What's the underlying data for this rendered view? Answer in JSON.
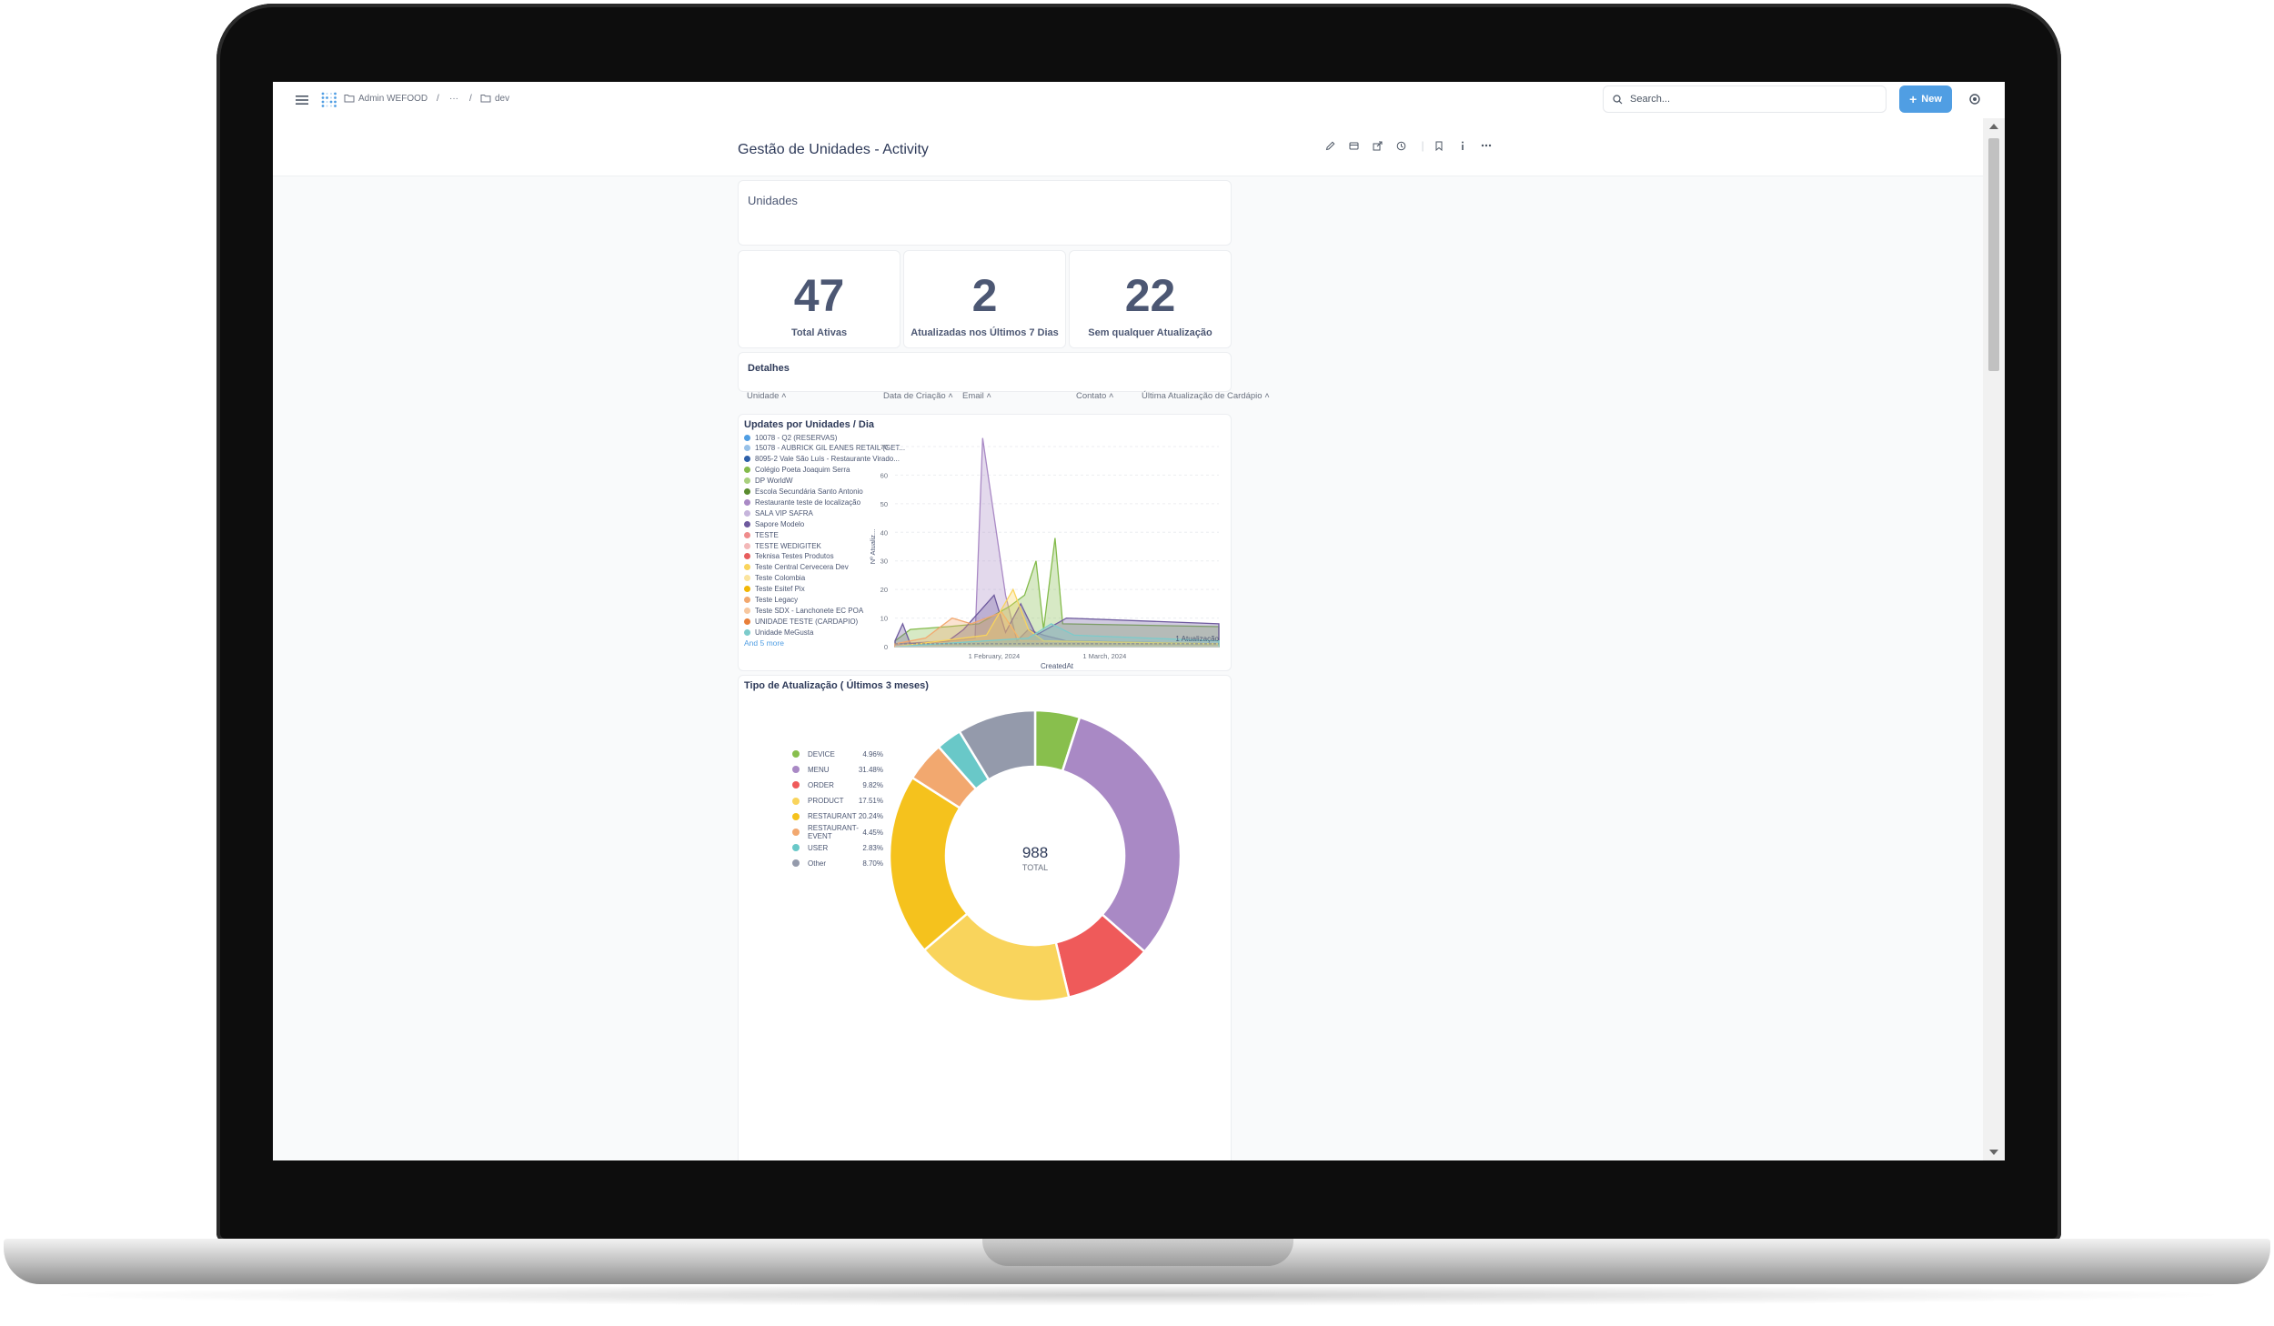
{
  "nav": {
    "breadcrumb": [
      "Admin WEFOOD",
      "/",
      "···",
      "/",
      "dev"
    ],
    "search_placeholder": "Search...",
    "new_label": "New"
  },
  "header": {
    "title": "Gestão de Unidades - Activity"
  },
  "unidades_card": {
    "title": "Unidades"
  },
  "kpis": [
    {
      "value": "47",
      "label": "Total Ativas"
    },
    {
      "value": "2",
      "label": "Atualizadas nos Últimos 7 Dias"
    },
    {
      "value": "22",
      "label": "Sem qualquer Atualização"
    }
  ],
  "detalhes": {
    "title": "Detalhes",
    "columns": [
      "Unidade",
      "Data de Criação",
      "Email",
      "Contato",
      "Última Atualização de Cardápio"
    ]
  },
  "area_chart": {
    "title": "Updates por Unidades / Dia",
    "legend": [
      {
        "name": "10078 - Q2 (RESERVAS)",
        "color": "#509ee3"
      },
      {
        "name": "15078 - AUBRICK GIL EANES RETAIL (GET...",
        "color": "#98c1e8"
      },
      {
        "name": "8095-2 Vale São Luís - Restaurante Virado...",
        "color": "#2d5fa8"
      },
      {
        "name": "Colégio Poeta Joaquim Serra",
        "color": "#84bb4c"
      },
      {
        "name": "DP WorldW",
        "color": "#a9d07e"
      },
      {
        "name": "Escola Secundária Santo Antonio",
        "color": "#5a8b2f"
      },
      {
        "name": "Restaurante teste de localização",
        "color": "#a989c5"
      },
      {
        "name": "SALA VIP SAFRA",
        "color": "#c6b5dc"
      },
      {
        "name": "Sapore Modelo",
        "color": "#6e5a9e"
      },
      {
        "name": "TESTE",
        "color": "#ef8c8c"
      },
      {
        "name": "TESTE WEDIGITEK",
        "color": "#f3b8b8"
      },
      {
        "name": "Teknisa Testes Produtos",
        "color": "#e75d5d"
      },
      {
        "name": "Teste Central Cervecera Dev",
        "color": "#f9d45c"
      },
      {
        "name": "Teste Colombia",
        "color": "#fbe49e"
      },
      {
        "name": "Teste Esitef Pix",
        "color": "#f2b705"
      },
      {
        "name": "Teste Legacy",
        "color": "#f2a86f"
      },
      {
        "name": "Teste SDX - Lanchonete EC POA",
        "color": "#f7c8a0"
      },
      {
        "name": "UNIDADE TESTE (CARDAPIO)",
        "color": "#e87f3a"
      },
      {
        "name": "Unidade MeGusta",
        "color": "#7ccbcb"
      }
    ],
    "and_more": "And 5 more",
    "goal_label": "1 Atualização"
  },
  "chart_data": [
    {
      "type": "area",
      "title": "Updates por Unidades / Dia",
      "xlabel": "CreatedAt",
      "ylabel": "Nº Atualiz...",
      "ylim": [
        0,
        70
      ],
      "yticks": [
        0,
        10,
        20,
        30,
        40,
        50,
        60,
        70
      ],
      "xticks": [
        "1 February, 2024",
        "1 March, 2024"
      ],
      "x_range": [
        "2024-01-06",
        "2024-03-31"
      ],
      "goal_line": 1,
      "legend_position": "left",
      "series": [
        {
          "name": "Restaurante teste de localização",
          "color": "#a989c5",
          "points": [
            [
              "2024-01-06",
              1
            ],
            [
              "2024-01-20",
              2
            ],
            [
              "2024-01-27",
              3
            ],
            [
              "2024-01-29",
              73
            ],
            [
              "2024-02-04",
              18
            ],
            [
              "2024-02-07",
              2
            ],
            [
              "2024-02-10",
              6
            ],
            [
              "2024-02-14",
              4
            ],
            [
              "2024-02-20",
              2
            ],
            [
              "2024-03-31",
              1
            ]
          ]
        },
        {
          "name": "Colégio Poeta Joaquim Serra",
          "color": "#84bb4c",
          "points": [
            [
              "2024-01-06",
              2
            ],
            [
              "2024-01-10",
              6
            ],
            [
              "2024-01-20",
              7
            ],
            [
              "2024-01-28",
              8
            ],
            [
              "2024-02-05",
              14
            ],
            [
              "2024-02-09",
              18
            ],
            [
              "2024-02-12",
              30
            ],
            [
              "2024-02-14",
              6
            ],
            [
              "2024-02-17",
              38
            ],
            [
              "2024-02-19",
              8
            ],
            [
              "2024-03-31",
              7
            ]
          ]
        },
        {
          "name": "Sapore Modelo",
          "color": "#6e5a9e",
          "points": [
            [
              "2024-01-06",
              2
            ],
            [
              "2024-01-08",
              8
            ],
            [
              "2024-01-10",
              1
            ],
            [
              "2024-01-20",
              2
            ],
            [
              "2024-01-24",
              6
            ],
            [
              "2024-02-01",
              18
            ],
            [
              "2024-02-04",
              5
            ],
            [
              "2024-02-08",
              15
            ],
            [
              "2024-02-12",
              4
            ],
            [
              "2024-02-20",
              10
            ],
            [
              "2024-03-31",
              8
            ]
          ]
        },
        {
          "name": "Teste Legacy",
          "color": "#f2a86f",
          "points": [
            [
              "2024-01-06",
              1
            ],
            [
              "2024-01-14",
              3
            ],
            [
              "2024-01-21",
              10
            ],
            [
              "2024-01-26",
              8
            ],
            [
              "2024-02-03",
              12
            ],
            [
              "2024-02-08",
              2
            ],
            [
              "2024-03-31",
              1
            ]
          ]
        },
        {
          "name": "Teste Central Cervecera Dev",
          "color": "#f9d45c",
          "points": [
            [
              "2024-01-06",
              0
            ],
            [
              "2024-01-30",
              4
            ],
            [
              "2024-02-06",
              20
            ],
            [
              "2024-02-10",
              6
            ],
            [
              "2024-02-14",
              2
            ],
            [
              "2024-03-31",
              1
            ]
          ]
        },
        {
          "name": "Unidade MeGusta",
          "color": "#7ccbcb",
          "points": [
            [
              "2024-01-06",
              0
            ],
            [
              "2024-02-10",
              3
            ],
            [
              "2024-02-16",
              8
            ],
            [
              "2024-02-22",
              4
            ],
            [
              "2024-03-31",
              2
            ]
          ]
        }
      ]
    },
    {
      "type": "pie",
      "title": "Tipo de Atualização ( Últimos 3 meses)",
      "total": 988,
      "total_label": "TOTAL",
      "legend_position": "left",
      "slices": [
        {
          "label": "DEVICE",
          "percent": 4.96,
          "pct_text": "4.96%",
          "color": "#88bf4d"
        },
        {
          "label": "MENU",
          "percent": 31.48,
          "pct_text": "31.48%",
          "color": "#a989c5"
        },
        {
          "label": "ORDER",
          "percent": 9.82,
          "pct_text": "9.82%",
          "color": "#ef5a5a"
        },
        {
          "label": "PRODUCT",
          "percent": 17.51,
          "pct_text": "17.51%",
          "color": "#f9d45c"
        },
        {
          "label": "RESTAURANT",
          "percent": 20.24,
          "pct_text": "20.24%",
          "color": "#f5c21d"
        },
        {
          "label": "RESTAURANT-EVENT",
          "percent": 4.45,
          "pct_text": "4.45%",
          "color": "#f2a86f"
        },
        {
          "label": "USER",
          "percent": 2.83,
          "pct_text": "2.83%",
          "color": "#69c8c8"
        },
        {
          "label": "Other",
          "percent": 8.7,
          "pct_text": "8.70%",
          "color": "#949aab"
        }
      ]
    }
  ],
  "pie_card": {
    "title": "Tipo de Atualização ( Últimos 3 meses)",
    "total": "988",
    "total_label": "TOTAL"
  }
}
